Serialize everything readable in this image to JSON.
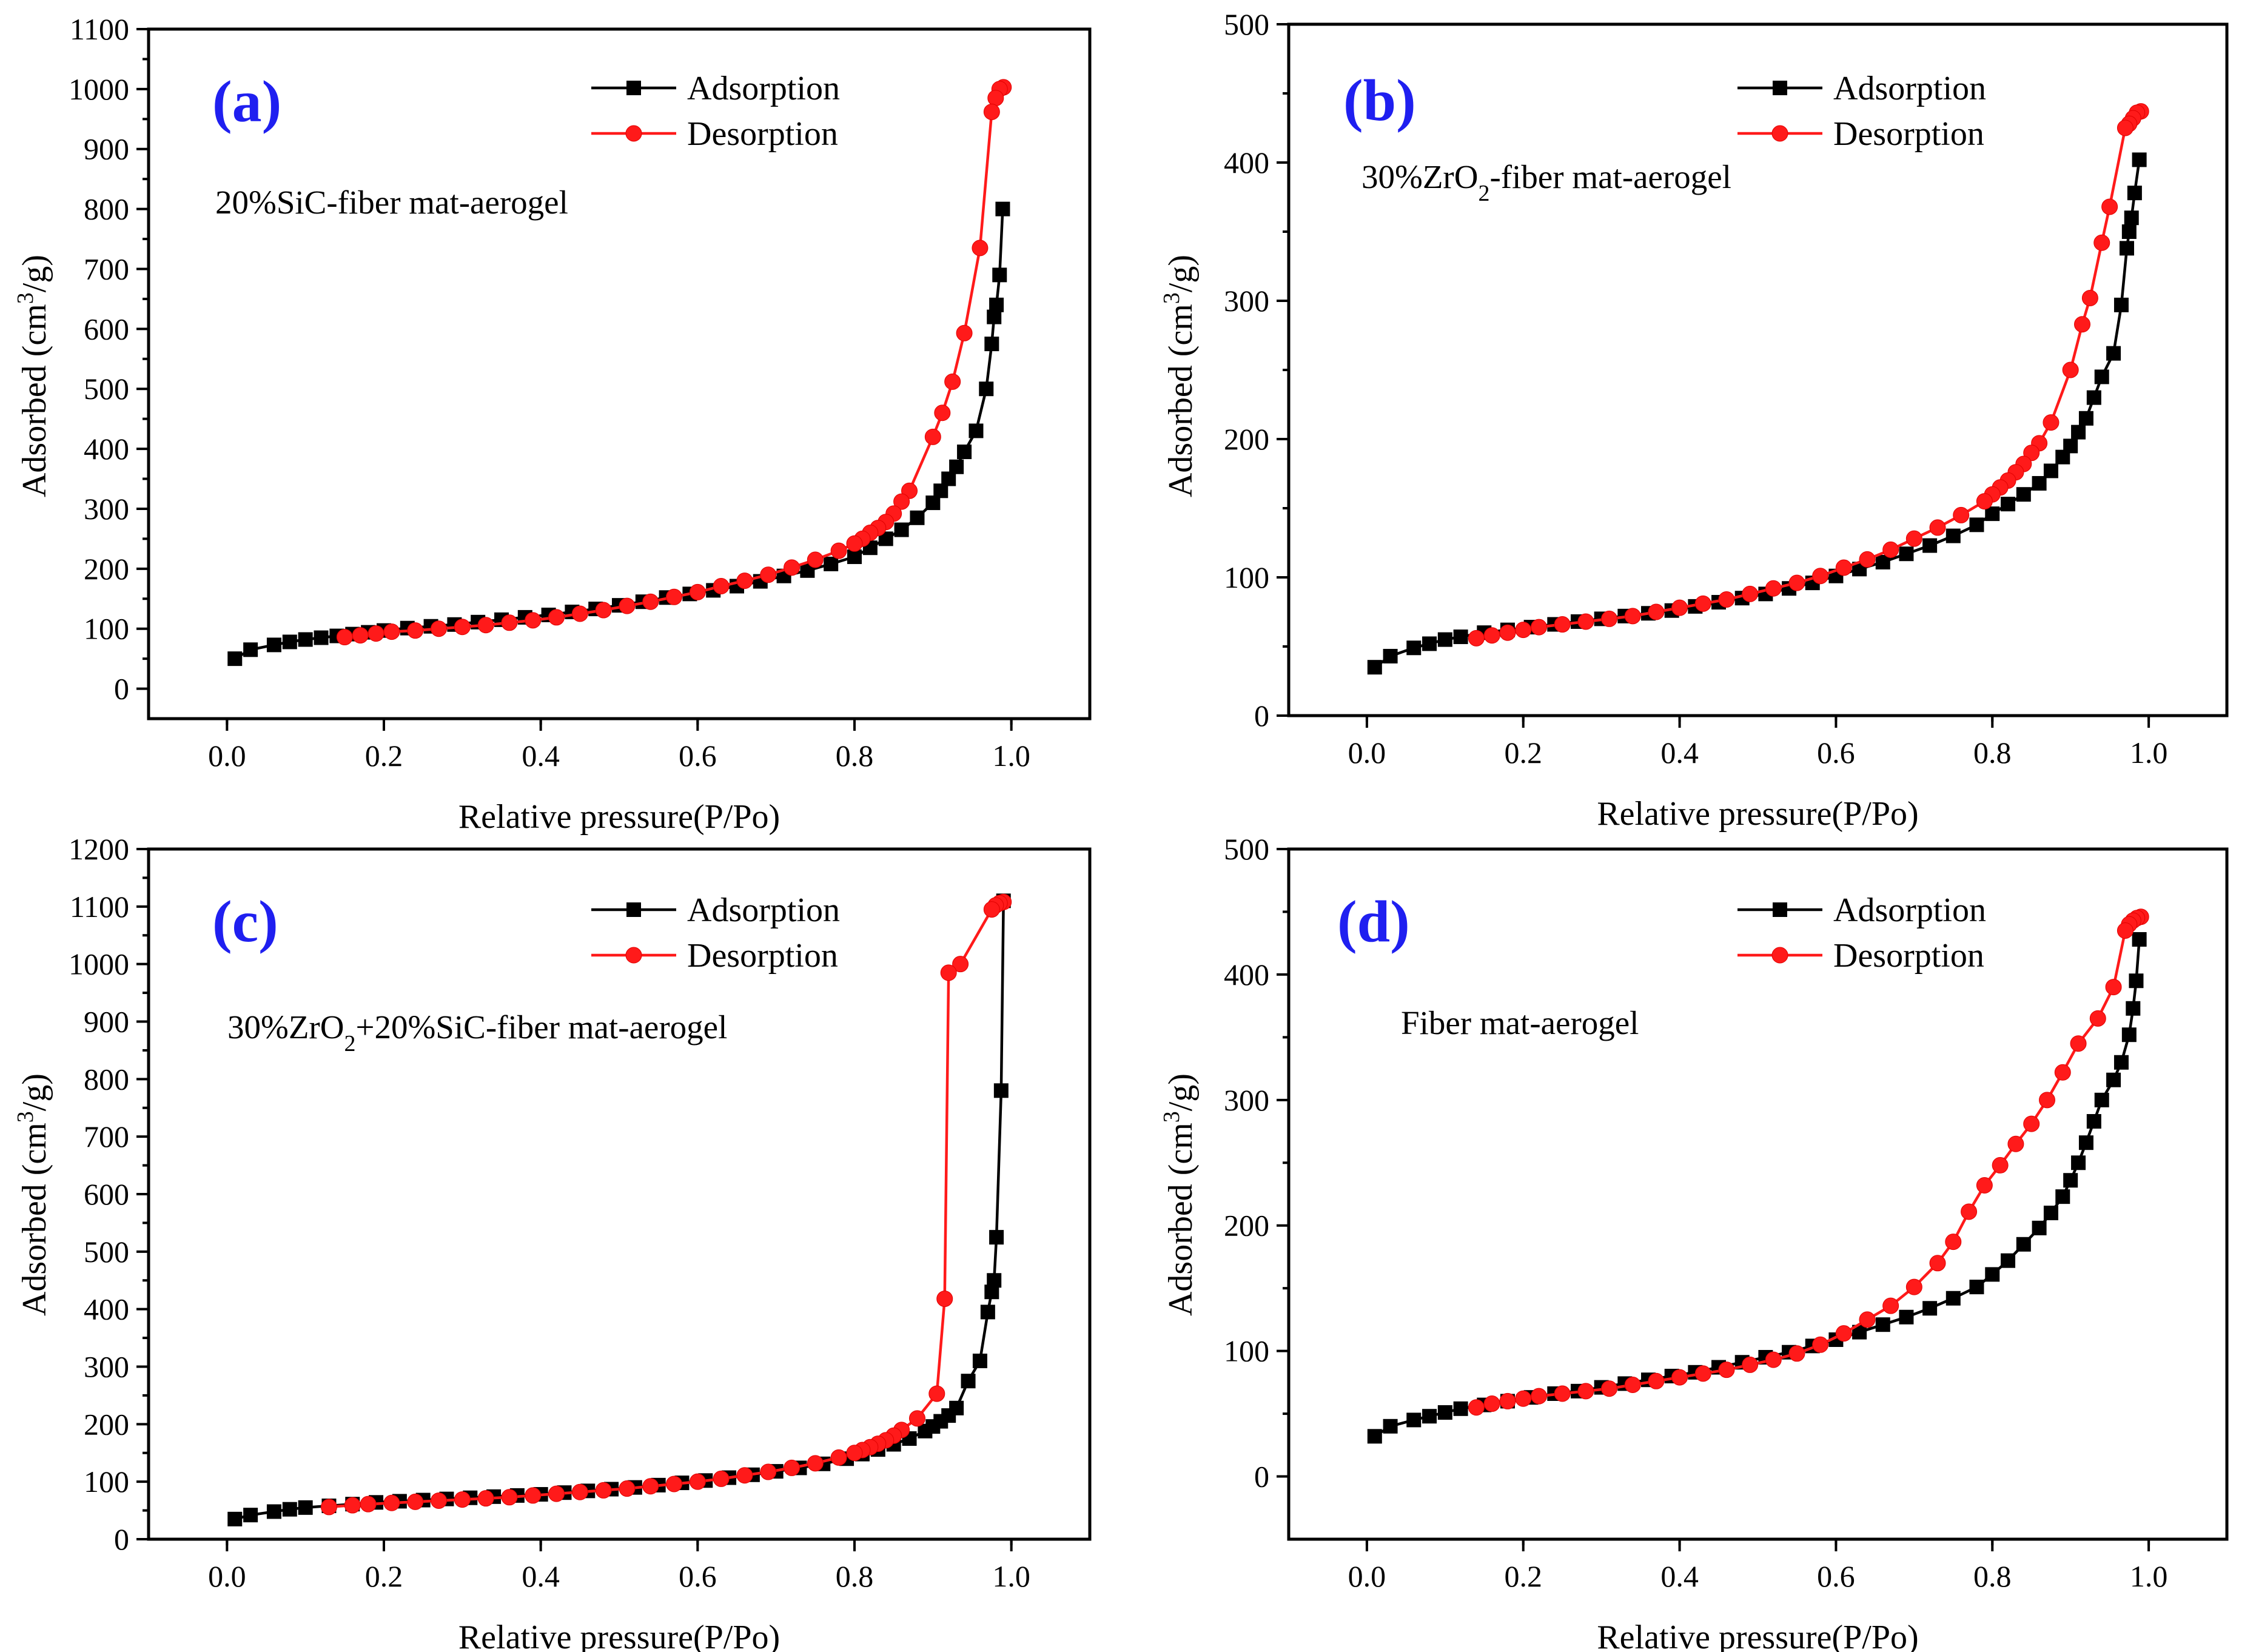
{
  "chart_data": [
    {
      "type": "line",
      "panel": "(a)",
      "label": "20%SiC-fiber mat-aerogel",
      "xlabel": "Relative pressure(P/Po)",
      "ylabel": "Adsorbed (cm3/g)",
      "ylabel_main": "Adsorbed (cm",
      "ylabel_sup": "3",
      "ylabel_end": "/g)",
      "xlim": [
        -0.1,
        1.1
      ],
      "ylim": [
        -50,
        1100
      ],
      "xticks": [
        0.0,
        0.2,
        0.4,
        0.6,
        0.8,
        1.0
      ],
      "yticks": [
        0,
        100,
        200,
        300,
        400,
        500,
        600,
        700,
        800,
        900,
        1000,
        1100
      ],
      "xtick_labels": [
        "0.0",
        "0.2",
        "0.4",
        "0.6",
        "0.8",
        "1.0"
      ],
      "ytick_labels": [
        "0",
        "100",
        "200",
        "300",
        "400",
        "500",
        "600",
        "700",
        "800",
        "900",
        "1000",
        "1100"
      ],
      "series": [
        {
          "name": "Adsorption",
          "color": "#000000",
          "marker": "square",
          "x": [
            0.01,
            0.03,
            0.06,
            0.08,
            0.1,
            0.12,
            0.14,
            0.16,
            0.18,
            0.2,
            0.23,
            0.26,
            0.29,
            0.32,
            0.35,
            0.38,
            0.41,
            0.44,
            0.47,
            0.5,
            0.53,
            0.56,
            0.59,
            0.62,
            0.65,
            0.68,
            0.71,
            0.74,
            0.77,
            0.8,
            0.82,
            0.84,
            0.86,
            0.88,
            0.9,
            0.91,
            0.92,
            0.93,
            0.94,
            0.955,
            0.968,
            0.975,
            0.978,
            0.981,
            0.985,
            0.989
          ],
          "values": [
            50,
            65,
            73,
            78,
            82,
            85,
            88,
            91,
            94,
            97,
            101,
            104,
            107,
            111,
            115,
            119,
            123,
            128,
            133,
            139,
            145,
            152,
            158,
            164,
            171,
            179,
            188,
            197,
            208,
            220,
            235,
            250,
            265,
            285,
            310,
            330,
            350,
            370,
            395,
            430,
            500,
            575,
            620,
            640,
            690,
            800
          ]
        },
        {
          "name": "Desorption",
          "color": "#ff1a1a",
          "marker": "circle",
          "x": [
            0.99,
            0.985,
            0.98,
            0.975,
            0.96,
            0.94,
            0.925,
            0.912,
            0.9,
            0.87,
            0.86,
            0.85,
            0.84,
            0.83,
            0.82,
            0.81,
            0.8,
            0.78,
            0.75,
            0.72,
            0.69,
            0.66,
            0.63,
            0.6,
            0.57,
            0.54,
            0.51,
            0.48,
            0.45,
            0.42,
            0.39,
            0.36,
            0.33,
            0.3,
            0.27,
            0.24,
            0.21,
            0.19,
            0.17,
            0.15
          ],
          "values": [
            1003,
            1000,
            985,
            962,
            735,
            593,
            512,
            460,
            420,
            330,
            312,
            292,
            278,
            268,
            260,
            250,
            242,
            230,
            215,
            202,
            190,
            180,
            171,
            161,
            153,
            145,
            138,
            131,
            125,
            119,
            114,
            110,
            106,
            103,
            100,
            97,
            95,
            92,
            89,
            86
          ]
        }
      ]
    },
    {
      "type": "line",
      "panel": "(b)",
      "label_main": "30%ZrO",
      "label_sub": "2",
      "label_end": "-fiber mat-aerogel",
      "xlabel": "Relative pressure(P/Po)",
      "ylabel_main": "Adsorbed (cm",
      "ylabel_sup": "3",
      "ylabel_end": "/g)",
      "xlim": [
        -0.1,
        1.1
      ],
      "ylim": [
        0,
        500
      ],
      "xticks": [
        0.0,
        0.2,
        0.4,
        0.6,
        0.8,
        1.0
      ],
      "yticks": [
        0,
        100,
        200,
        300,
        400,
        500
      ],
      "xtick_labels": [
        "0.0",
        "0.2",
        "0.4",
        "0.6",
        "0.8",
        "1.0"
      ],
      "ytick_labels": [
        "0",
        "100",
        "200",
        "300",
        "400",
        "500"
      ],
      "series": [
        {
          "name": "Adsorption",
          "color": "#000000",
          "marker": "square",
          "x": [
            0.01,
            0.03,
            0.06,
            0.08,
            0.1,
            0.12,
            0.15,
            0.18,
            0.21,
            0.24,
            0.27,
            0.3,
            0.33,
            0.36,
            0.39,
            0.42,
            0.45,
            0.48,
            0.51,
            0.54,
            0.57,
            0.6,
            0.63,
            0.66,
            0.69,
            0.72,
            0.75,
            0.78,
            0.8,
            0.82,
            0.84,
            0.86,
            0.875,
            0.89,
            0.9,
            0.91,
            0.92,
            0.93,
            0.94,
            0.955,
            0.965,
            0.972,
            0.975,
            0.978,
            0.982,
            0.988
          ],
          "values": [
            35,
            43,
            49,
            52,
            55,
            57,
            60,
            62,
            64,
            66,
            68,
            70,
            72,
            74,
            76,
            79,
            82,
            85,
            88,
            92,
            96,
            101,
            106,
            111,
            117,
            123,
            130,
            138,
            146,
            153,
            160,
            168,
            177,
            187,
            195,
            205,
            215,
            230,
            245,
            262,
            297,
            338,
            350,
            360,
            378,
            402
          ]
        },
        {
          "name": "Desorption",
          "color": "#ff1a1a",
          "marker": "circle",
          "x": [
            0.99,
            0.985,
            0.98,
            0.975,
            0.97,
            0.95,
            0.94,
            0.925,
            0.915,
            0.9,
            0.875,
            0.86,
            0.85,
            0.84,
            0.83,
            0.82,
            0.81,
            0.8,
            0.79,
            0.76,
            0.73,
            0.7,
            0.67,
            0.64,
            0.61,
            0.58,
            0.55,
            0.52,
            0.49,
            0.46,
            0.43,
            0.4,
            0.37,
            0.34,
            0.31,
            0.28,
            0.25,
            0.22,
            0.2,
            0.18,
            0.16,
            0.14
          ],
          "values": [
            437,
            436,
            432,
            428,
            425,
            368,
            342,
            302,
            283,
            250,
            212,
            197,
            190,
            182,
            176,
            170,
            165,
            160,
            155,
            145,
            136,
            128,
            120,
            113,
            107,
            101,
            96,
            92,
            88,
            84,
            81,
            78,
            75,
            72,
            70,
            68,
            66,
            64,
            62,
            60,
            58,
            56
          ]
        }
      ]
    },
    {
      "type": "line",
      "panel": "(c)",
      "label_main": "30%ZrO",
      "label_sub": "2",
      "label_end": "+20%SiC-fiber mat-aerogel",
      "xlabel": "Relative pressure(P/Po)",
      "ylabel_main": "Adsorbed (cm",
      "ylabel_sup": "3",
      "ylabel_end": "/g)",
      "xlim": [
        -0.1,
        1.1
      ],
      "ylim": [
        0,
        1200
      ],
      "xticks": [
        0.0,
        0.2,
        0.4,
        0.6,
        0.8,
        1.0
      ],
      "yticks": [
        0,
        100,
        200,
        300,
        400,
        500,
        600,
        700,
        800,
        900,
        1000,
        1100,
        1200
      ],
      "xtick_labels": [
        "0.0",
        "0.2",
        "0.4",
        "0.6",
        "0.8",
        "1.0"
      ],
      "ytick_labels": [
        "0",
        "100",
        "200",
        "300",
        "400",
        "500",
        "600",
        "700",
        "800",
        "900",
        "1000",
        "1100",
        "1200"
      ],
      "series": [
        {
          "name": "Adsorption",
          "color": "#000000",
          "marker": "square",
          "x": [
            0.01,
            0.03,
            0.06,
            0.08,
            0.1,
            0.13,
            0.16,
            0.19,
            0.22,
            0.25,
            0.28,
            0.31,
            0.34,
            0.37,
            0.4,
            0.43,
            0.46,
            0.49,
            0.52,
            0.55,
            0.58,
            0.61,
            0.64,
            0.67,
            0.7,
            0.73,
            0.76,
            0.79,
            0.81,
            0.83,
            0.85,
            0.87,
            0.89,
            0.9,
            0.91,
            0.92,
            0.93,
            0.945,
            0.96,
            0.97,
            0.975,
            0.978,
            0.981,
            0.987,
            0.99
          ],
          "values": [
            35,
            42,
            48,
            52,
            55,
            58,
            61,
            64,
            66,
            68,
            70,
            72,
            74,
            76,
            78,
            81,
            84,
            87,
            90,
            94,
            98,
            102,
            107,
            112,
            118,
            124,
            131,
            140,
            148,
            156,
            165,
            175,
            188,
            196,
            205,
            215,
            228,
            275,
            310,
            395,
            430,
            450,
            525,
            780,
            1110
          ]
        },
        {
          "name": "Desorption",
          "color": "#ff1a1a",
          "marker": "circle",
          "x": [
            0.99,
            0.985,
            0.98,
            0.975,
            0.935,
            0.92,
            0.915,
            0.905,
            0.88,
            0.86,
            0.85,
            0.84,
            0.83,
            0.82,
            0.81,
            0.8,
            0.78,
            0.75,
            0.72,
            0.69,
            0.66,
            0.63,
            0.6,
            0.57,
            0.54,
            0.51,
            0.48,
            0.45,
            0.42,
            0.39,
            0.36,
            0.33,
            0.3,
            0.27,
            0.24,
            0.21,
            0.18,
            0.16,
            0.13
          ],
          "values": [
            1108,
            1106,
            1102,
            1095,
            1000,
            985,
            418,
            253,
            210,
            190,
            180,
            172,
            166,
            160,
            155,
            150,
            142,
            132,
            124,
            117,
            111,
            105,
            100,
            96,
            92,
            88,
            85,
            82,
            79,
            76,
            73,
            71,
            69,
            67,
            65,
            63,
            61,
            59,
            56
          ]
        }
      ]
    },
    {
      "type": "line",
      "panel": "(d)",
      "label": "Fiber mat-aerogel",
      "xlabel": "Relative pressure(P/Po)",
      "ylabel_main": "Adsorbed (cm",
      "ylabel_sup": "3",
      "ylabel_end": "/g)",
      "xlim": [
        -0.1,
        1.1
      ],
      "ylim": [
        -50,
        500
      ],
      "xticks": [
        0.0,
        0.2,
        0.4,
        0.6,
        0.8,
        1.0
      ],
      "yticks": [
        0,
        100,
        200,
        300,
        400,
        500
      ],
      "xtick_labels": [
        "0.0",
        "0.2",
        "0.4",
        "0.6",
        "0.8",
        "1.0"
      ],
      "ytick_labels": [
        "0",
        "100",
        "200",
        "300",
        "400",
        "500"
      ],
      "series": [
        {
          "name": "Adsorption",
          "color": "#000000",
          "marker": "square",
          "x": [
            0.01,
            0.03,
            0.06,
            0.08,
            0.1,
            0.12,
            0.15,
            0.18,
            0.21,
            0.24,
            0.27,
            0.3,
            0.33,
            0.36,
            0.39,
            0.42,
            0.45,
            0.48,
            0.51,
            0.54,
            0.57,
            0.6,
            0.63,
            0.66,
            0.69,
            0.72,
            0.75,
            0.78,
            0.8,
            0.82,
            0.84,
            0.86,
            0.875,
            0.89,
            0.9,
            0.91,
            0.92,
            0.93,
            0.94,
            0.955,
            0.965,
            0.975,
            0.98,
            0.984,
            0.988
          ],
          "values": [
            32,
            40,
            45,
            48,
            51,
            54,
            57,
            60,
            63,
            66,
            68,
            71,
            74,
            77,
            80,
            83,
            87,
            91,
            95,
            99,
            104,
            109,
            115,
            121,
            127,
            134,
            142,
            151,
            161,
            172,
            185,
            198,
            210,
            223,
            236,
            250,
            266,
            283,
            300,
            316,
            330,
            352,
            373,
            395,
            428
          ]
        },
        {
          "name": "Desorption",
          "color": "#ff1a1a",
          "marker": "circle",
          "x": [
            0.99,
            0.985,
            0.98,
            0.975,
            0.97,
            0.955,
            0.935,
            0.91,
            0.89,
            0.87,
            0.85,
            0.83,
            0.81,
            0.79,
            0.77,
            0.75,
            0.73,
            0.7,
            0.67,
            0.64,
            0.61,
            0.58,
            0.55,
            0.52,
            0.49,
            0.46,
            0.43,
            0.4,
            0.37,
            0.34,
            0.31,
            0.28,
            0.25,
            0.22,
            0.2,
            0.18,
            0.16,
            0.14
          ],
          "values": [
            446,
            445,
            443,
            440,
            435,
            390,
            365,
            345,
            322,
            300,
            281,
            265,
            248,
            232,
            211,
            187,
            170,
            151,
            136,
            125,
            114,
            105,
            98,
            93,
            89,
            85,
            82,
            79,
            76,
            73,
            70,
            68,
            66,
            64,
            62,
            60,
            58,
            55
          ]
        }
      ]
    }
  ]
}
